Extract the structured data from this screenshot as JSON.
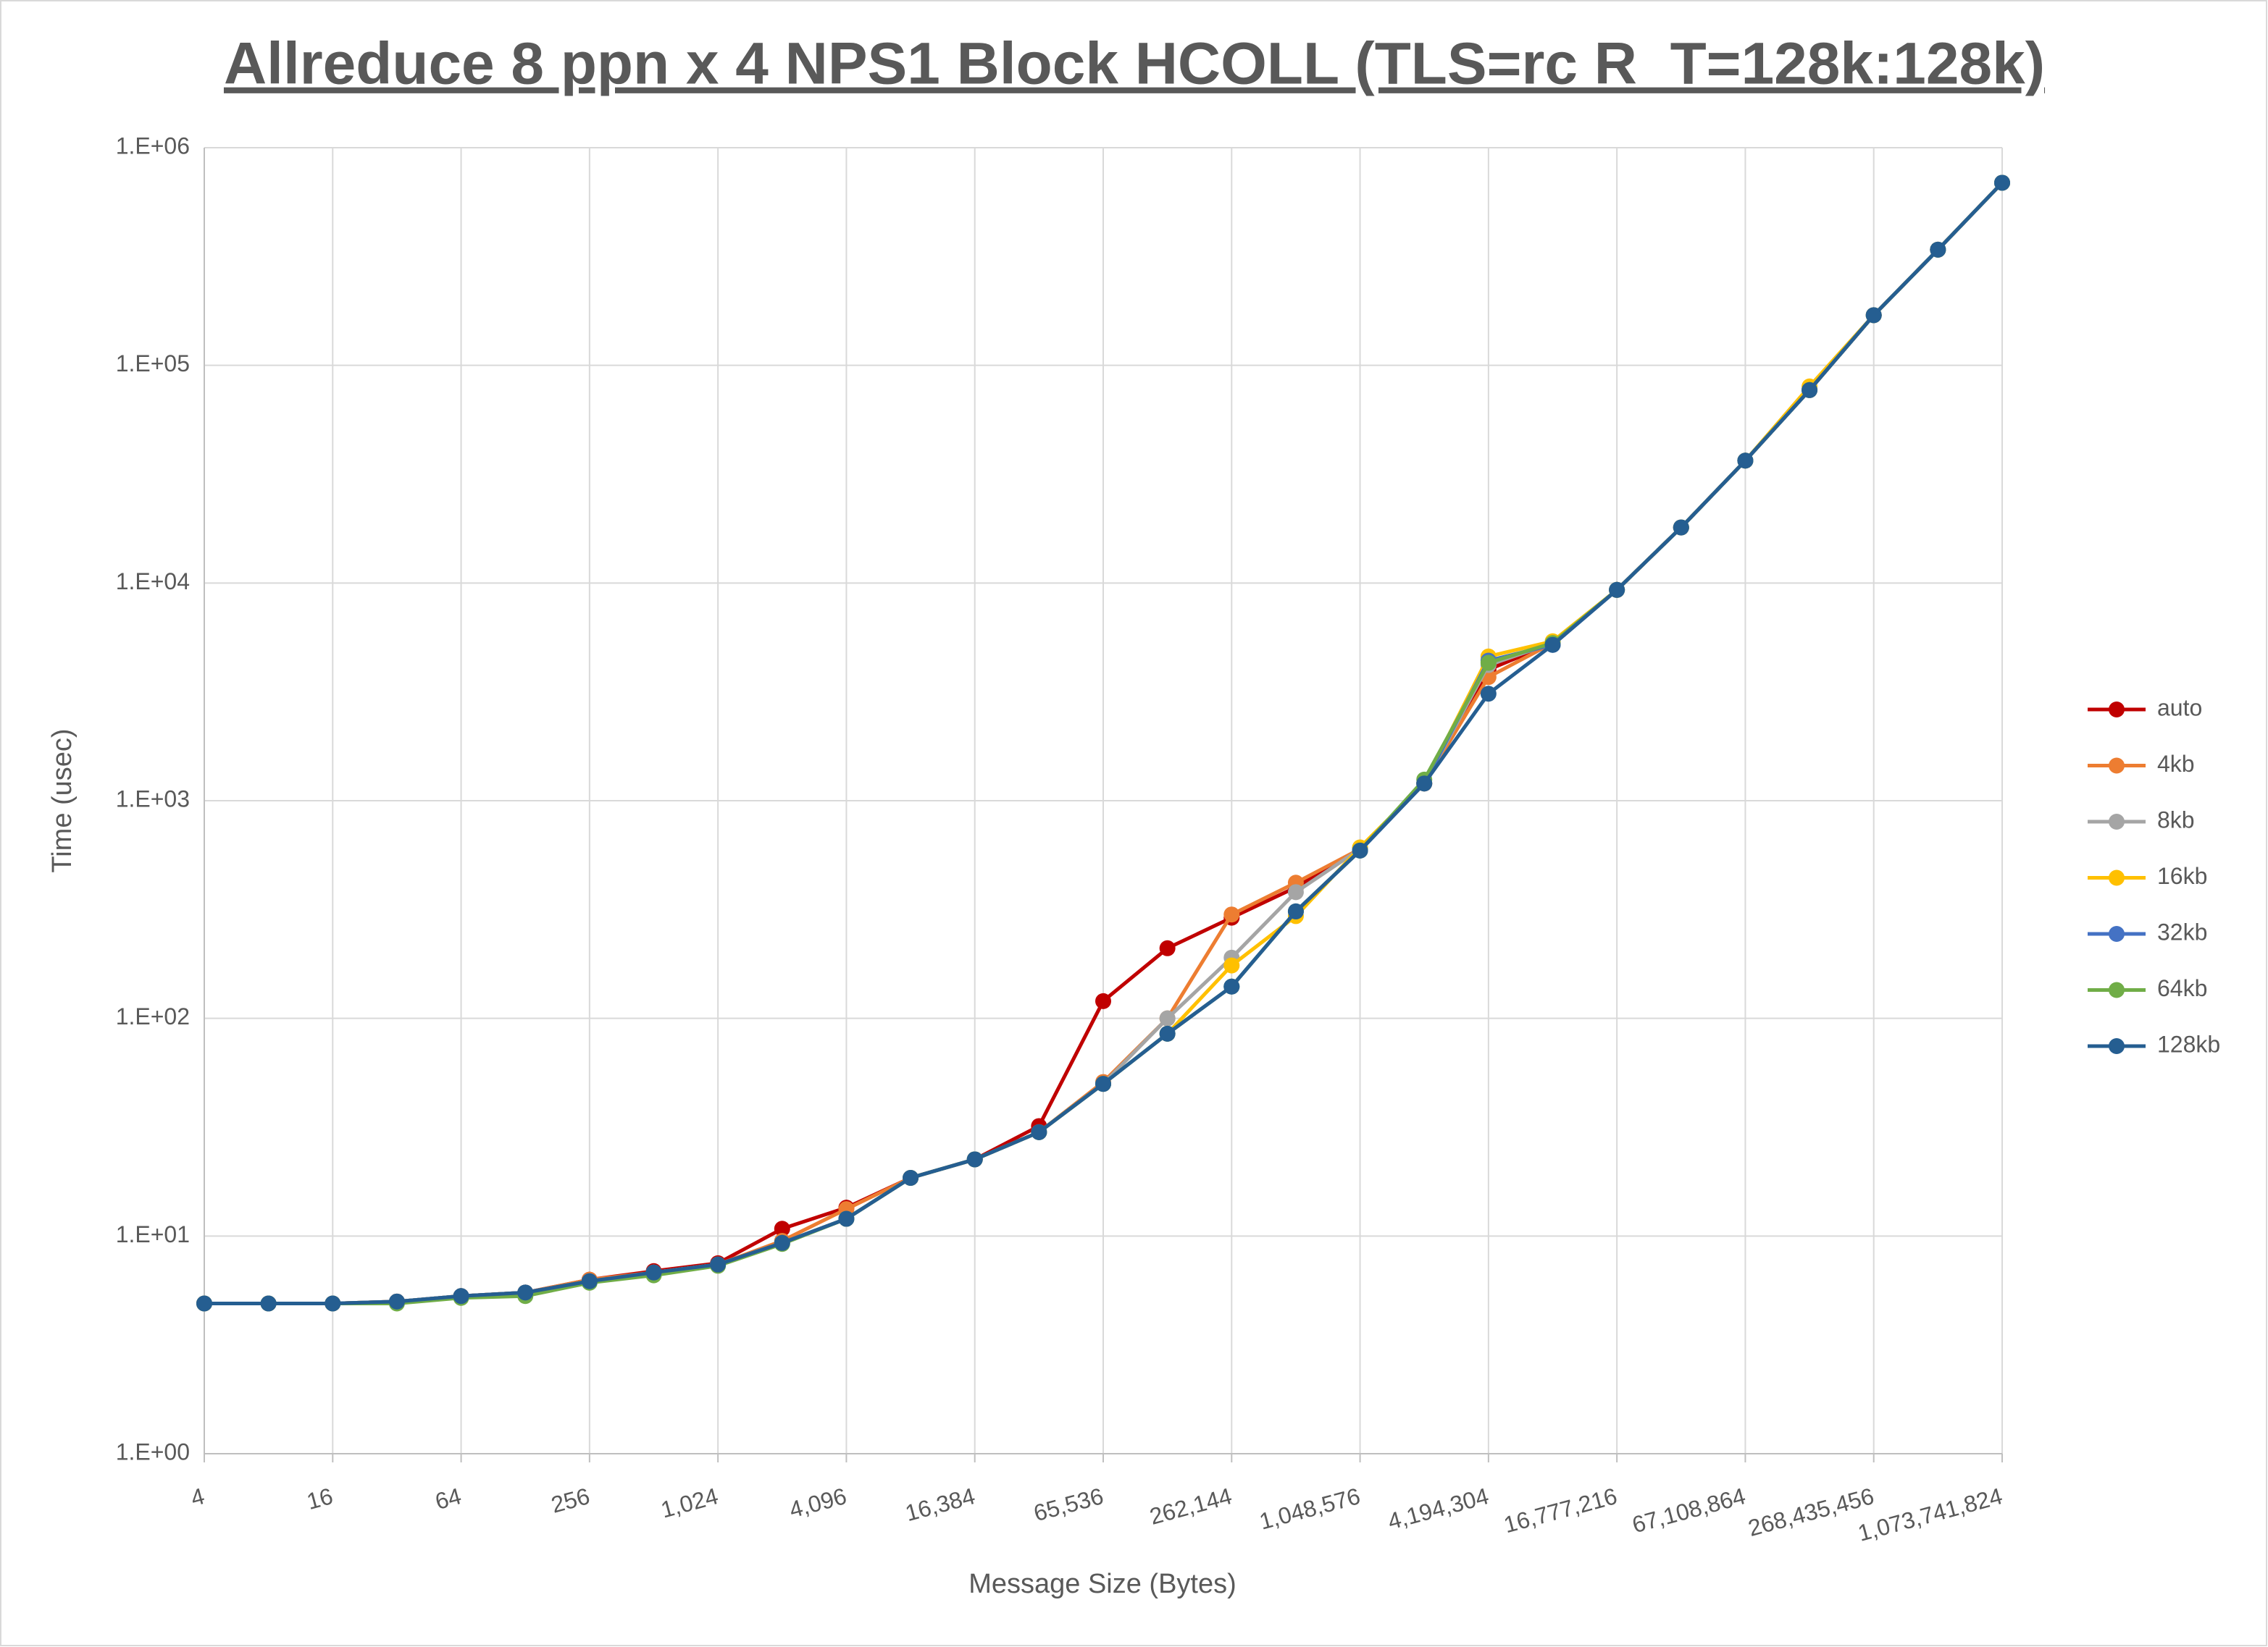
{
  "chart_data": {
    "type": "line",
    "title": "Allreduce 8 ppn x 4 NPS1 Block HCOLL (TLS=rc R_T=128k:128k)",
    "x_label": "Message Size (Bytes)",
    "y_label": "Time (usec)",
    "x": [
      4,
      8,
      16,
      32,
      64,
      128,
      256,
      512,
      1024,
      2048,
      4096,
      8192,
      16384,
      32768,
      65536,
      131072,
      262144,
      524288,
      1048576,
      2097152,
      4194304,
      8388608,
      16777216,
      33554432,
      67108864,
      134217728,
      268435456,
      536870912,
      1073741824
    ],
    "x_log_base": 2,
    "y_log": true,
    "grid": true,
    "legend": "right",
    "xlim": [
      4,
      1073741824
    ],
    "ylim": [
      1,
      1000000
    ],
    "xticks": [
      {
        "value": 4,
        "label": "4"
      },
      {
        "value": 16,
        "label": "16"
      },
      {
        "value": 64,
        "label": "64"
      },
      {
        "value": 256,
        "label": "256"
      },
      {
        "value": 1024,
        "label": "1,024"
      },
      {
        "value": 4096,
        "label": "4,096"
      },
      {
        "value": 16384,
        "label": "16,384"
      },
      {
        "value": 65536,
        "label": "65,536"
      },
      {
        "value": 262144,
        "label": "262,144"
      },
      {
        "value": 1048576,
        "label": "1,048,576"
      },
      {
        "value": 4194304,
        "label": "4,194,304"
      },
      {
        "value": 16777216,
        "label": "16,777,216"
      },
      {
        "value": 67108864,
        "label": "67,108,864"
      },
      {
        "value": 268435456,
        "label": "268,435,456"
      },
      {
        "value": 1073741824,
        "label": "1,073,741,824"
      }
    ],
    "yticks": [
      {
        "value": 1,
        "label": "1.E+00"
      },
      {
        "value": 10,
        "label": "1.E+01"
      },
      {
        "value": 100,
        "label": "1.E+02"
      },
      {
        "value": 1000,
        "label": "1.E+03"
      },
      {
        "value": 10000,
        "label": "1.E+04"
      },
      {
        "value": 100000,
        "label": "1.E+05"
      },
      {
        "value": 1000000,
        "label": "1.E+06"
      }
    ],
    "series": [
      {
        "name": "auto",
        "color": "#c00000",
        "values": [
          4.9,
          4.9,
          4.9,
          5.0,
          5.3,
          5.5,
          6.3,
          6.9,
          7.5,
          10.8,
          13.5,
          18.5,
          22.5,
          32,
          120,
          210,
          290,
          400,
          600,
          1200,
          4000,
          5300,
          9300,
          18000,
          36500,
          77000,
          170000,
          340000,
          690000
        ]
      },
      {
        "name": "4kb",
        "color": "#ed7d31",
        "values": [
          4.9,
          4.9,
          4.9,
          5.0,
          5.3,
          5.5,
          6.3,
          6.8,
          7.4,
          9.5,
          13.3,
          18.5,
          22.5,
          30,
          51,
          100,
          300,
          420,
          600,
          1200,
          3700,
          5300,
          9300,
          18000,
          36500,
          77000,
          170000,
          340000,
          690000
        ]
      },
      {
        "name": "8kb",
        "color": "#a5a5a5",
        "values": [
          4.9,
          4.9,
          4.9,
          5.0,
          5.3,
          5.5,
          6.2,
          6.8,
          7.4,
          9.3,
          12,
          18.5,
          22.5,
          30,
          50,
          100,
          190,
          380,
          600,
          1200,
          4200,
          5300,
          9300,
          18000,
          36500,
          77000,
          170000,
          340000,
          690000
        ]
      },
      {
        "name": "16kb",
        "color": "#ffc000",
        "values": [
          4.9,
          4.9,
          4.9,
          5.0,
          5.3,
          5.5,
          6.2,
          6.8,
          7.4,
          9.3,
          12,
          18.5,
          22.5,
          30,
          50,
          85,
          175,
          295,
          610,
          1200,
          4600,
          5400,
          9300,
          18000,
          36500,
          80000,
          170000,
          340000,
          690000
        ]
      },
      {
        "name": "32kb",
        "color": "#4472c4",
        "values": [
          4.9,
          4.9,
          4.9,
          5.0,
          5.3,
          5.5,
          6.2,
          6.8,
          7.4,
          9.3,
          12,
          18.5,
          22.5,
          30,
          50,
          85,
          140,
          310,
          590,
          1200,
          4400,
          5200,
          9300,
          18000,
          36500,
          77000,
          170000,
          340000,
          690000
        ]
      },
      {
        "name": "64kb",
        "color": "#70ad47",
        "values": [
          4.9,
          4.9,
          4.9,
          4.9,
          5.2,
          5.3,
          6.1,
          6.6,
          7.3,
          9.2,
          12,
          18.5,
          22.5,
          30,
          50,
          85,
          140,
          310,
          590,
          1250,
          4300,
          5300,
          9300,
          18000,
          36500,
          77000,
          170000,
          340000,
          690000
        ]
      },
      {
        "name": "128kb",
        "color": "#255e91",
        "values": [
          4.9,
          4.9,
          4.9,
          5.0,
          5.3,
          5.5,
          6.2,
          6.8,
          7.4,
          9.3,
          12,
          18.5,
          22.5,
          30,
          50,
          85,
          140,
          310,
          590,
          1200,
          3100,
          5200,
          9300,
          18000,
          36500,
          77000,
          170000,
          340000,
          690000
        ]
      }
    ]
  }
}
